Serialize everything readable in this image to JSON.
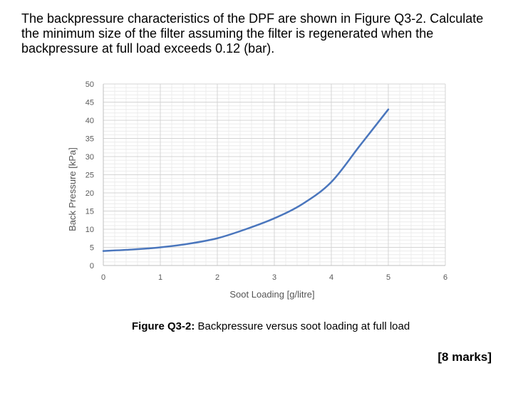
{
  "question": {
    "text": "The backpressure characteristics of the DPF are shown in Figure Q3-2. Calculate the minimum size of the filter assuming the filter is regenerated when the backpressure at full load exceeds 0.12 (bar)."
  },
  "figure": {
    "caption_label": "Figure Q3-2:",
    "caption_text": " Backpressure versus soot loading at full load"
  },
  "marks": "[8 marks]",
  "chart_data": {
    "type": "line",
    "title": "",
    "xlabel": "Soot Loading [g/litre]",
    "ylabel": "Back Pressure [kPa]",
    "xlim": [
      0,
      6
    ],
    "ylim": [
      0,
      50
    ],
    "xticks": [
      0,
      1,
      2,
      3,
      4,
      5,
      6
    ],
    "yticks": [
      0,
      5,
      10,
      15,
      20,
      25,
      30,
      35,
      40,
      45,
      50
    ],
    "grid": true,
    "line_color": "#4a76bd",
    "series": [
      {
        "x": [
          0,
          0.5,
          1,
          1.5,
          2,
          2.5,
          3,
          3.5,
          4,
          4.5,
          5
        ],
        "y": [
          4,
          4.4,
          5,
          6,
          7.5,
          10,
          13,
          17,
          23,
          33,
          43
        ]
      }
    ]
  }
}
